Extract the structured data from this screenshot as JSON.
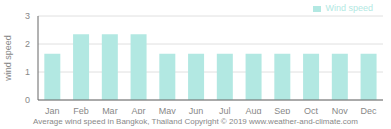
{
  "chart_data": {
    "type": "bar",
    "categories": [
      "Jan",
      "Feb",
      "Mar",
      "Apr",
      "May",
      "Jun",
      "Jul",
      "Aug",
      "Sep",
      "Oct",
      "Nov",
      "Dec"
    ],
    "series": [
      {
        "name": "Wind speed",
        "color": "#b2e8e2",
        "values": [
          1.65,
          2.35,
          2.35,
          2.35,
          1.65,
          1.65,
          1.65,
          1.65,
          1.65,
          1.65,
          1.65,
          1.65
        ]
      }
    ],
    "ylabel": "wind speed",
    "ylim": [
      0,
      3
    ],
    "yticks": [
      0,
      1,
      2,
      3
    ],
    "grid": true,
    "legend": "upper right",
    "caption": "Average wind speed in Bangkok, Thailand   Copyright © 2019 www.weather-and-climate.com"
  }
}
